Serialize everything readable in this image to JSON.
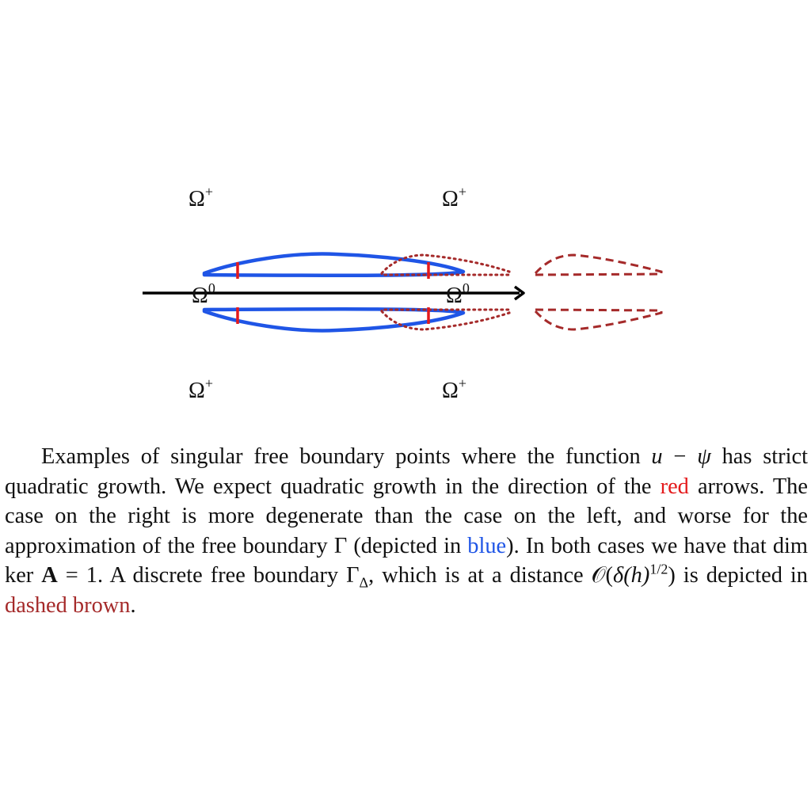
{
  "figure": {
    "labels": {
      "omega_plus": "Ω",
      "plus_sup": "+",
      "omega_zero": "Ω",
      "zero_sup": "0"
    },
    "colors": {
      "boundary_blue": "#1f55e6",
      "arrow_red": "#e41a1c",
      "discrete_brown": "#a52a2a",
      "axis_black": "#000000"
    }
  },
  "caption": {
    "text_1": "Examples of singular free boundary points where the function ",
    "math_u": "u",
    "minus": " − ",
    "math_psi": "ψ",
    "text_2": " has strict quadratic growth. We expect quadratic growth in the direction of the ",
    "red_word": "red",
    "text_3": " arrows. The case on the right is more degenerate than the case on the left, and worse for the approximation of the free boundary Γ (depicted in ",
    "blue_word": "blue",
    "text_4": "). In both cases we have that dim ker ",
    "bold_A": "A",
    "text_5": " = 1. A discrete free boundary Γ",
    "sub_delta": "Δ",
    "text_6": ", which is at a distance 𝒪(",
    "math_delta_h": "δ(h)",
    "sup_half": "1/2",
    "text_7": ") is depicted in ",
    "brown_phrase": "dashed brown",
    "text_8": "."
  }
}
